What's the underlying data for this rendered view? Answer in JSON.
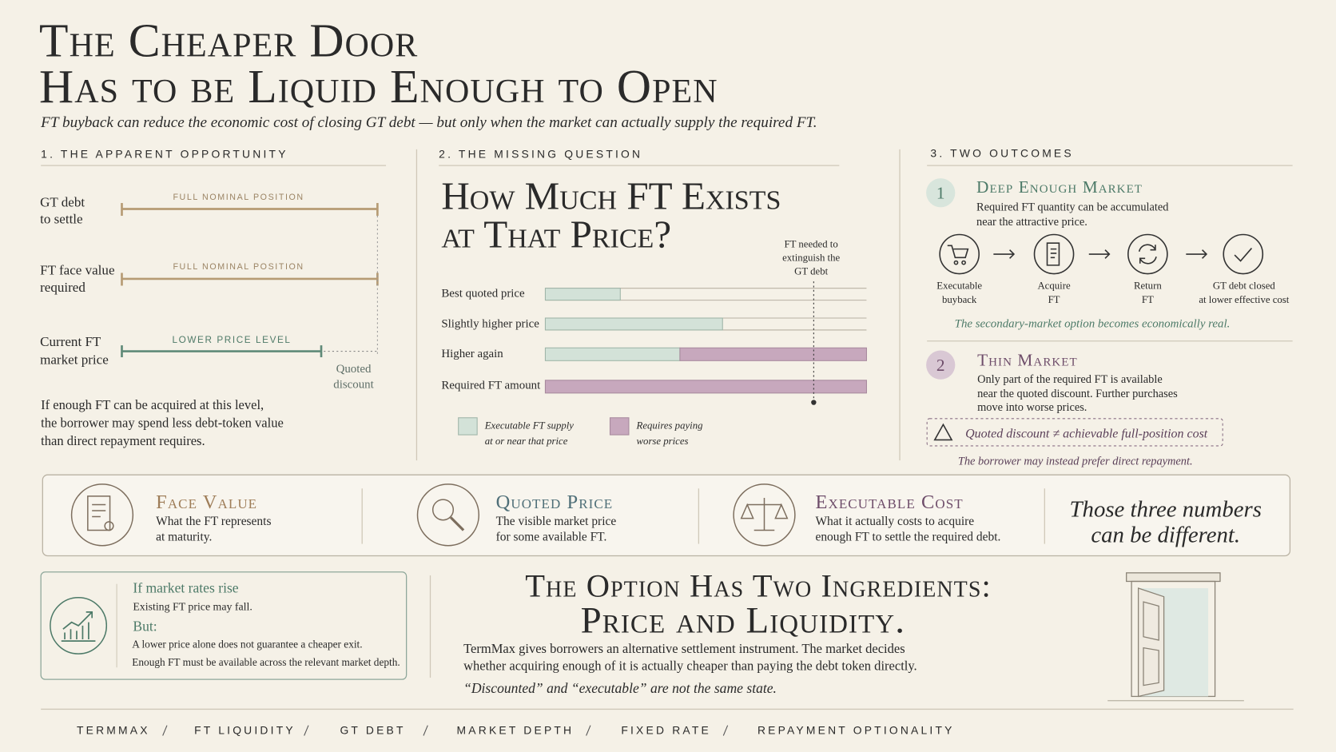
{
  "header": {
    "title": [
      "The Cheaper Door",
      "Has to be Liquid Enough to Open"
    ],
    "subtitle": "FT buyback can reduce the economic cost of closing GT debt — but only when the market can actually supply the required FT."
  },
  "section1": {
    "heading": "1. THE APPARENT OPPORTUNITY",
    "rows": [
      {
        "label": [
          "GT debt",
          "to settle"
        ],
        "bar_label": "FULL NOMINAL POSITION"
      },
      {
        "label": [
          "FT face value",
          "required"
        ],
        "bar_label": "FULL NOMINAL POSITION"
      },
      {
        "label": [
          "Current FT",
          "market price"
        ],
        "bar_label": "LOWER PRICE LEVEL"
      }
    ],
    "gap_label": [
      "Quoted",
      "discount"
    ],
    "text": [
      "If enough FT can be acquired at this level,",
      "the borrower may spend less debt-token value",
      "than direct repayment requires."
    ]
  },
  "section2": {
    "heading": "2. THE MISSING QUESTION",
    "question": [
      "How Much FT Exists",
      "at That Price?"
    ],
    "marker_note": [
      "FT needed to",
      "extinguish the",
      "GT debt"
    ],
    "rows": [
      "Best quoted price",
      "Slightly higher price",
      "Higher again",
      "Required FT amount"
    ],
    "legend": [
      [
        "Executable FT supply",
        "at or near that price"
      ],
      [
        "Requires paying",
        "worse prices"
      ]
    ]
  },
  "section3": {
    "heading": "3. TWO OUTCOMES",
    "outcomes": [
      {
        "number": "1",
        "title": "Deep Enough Market",
        "text": [
          "Required FT quantity can be accumulated",
          "near the attractive price."
        ],
        "steps": [
          [
            "Executable",
            "buyback"
          ],
          [
            "Acquire",
            "FT"
          ],
          [
            "Return",
            "FT"
          ],
          [
            "GT debt closed",
            "at lower effective cost"
          ]
        ],
        "note": "The secondary-market option becomes economically real."
      },
      {
        "number": "2",
        "title": "Thin Market",
        "text": [
          "Only part of the required FT is available",
          "near the quoted discount. Further purchases",
          "move into worse prices."
        ],
        "warning": "Quoted discount ≠ achievable full-position cost",
        "note": "The borrower may instead prefer direct repayment."
      }
    ]
  },
  "band": {
    "items": [
      {
        "title": "Face Value",
        "text": [
          "What the FT represents",
          "at maturity."
        ]
      },
      {
        "title": "Quoted Price",
        "text": [
          "The visible market price",
          "for some available FT."
        ]
      },
      {
        "title": "Executable Cost",
        "text": [
          "What it actually costs to acquire",
          "enough FT to settle the required debt."
        ]
      }
    ],
    "quote": [
      "Those three numbers",
      "can be different."
    ]
  },
  "rates": {
    "title": "If market rates rise",
    "line": "Existing FT price may fall.",
    "but": "But:",
    "lines": [
      "A lower price alone does not guarantee a cheaper exit.",
      "Enough FT must be available across the relevant market depth."
    ]
  },
  "conclusion": {
    "title": [
      "The Option Has Two Ingredients:",
      "Price and Liquidity."
    ],
    "text": [
      "TermMax gives borrowers an alternative settlement instrument. The market decides",
      "whether acquiring enough of it is actually cheaper than paying the debt token directly."
    ],
    "note": "“Discounted” and “executable” are not the same state."
  },
  "footer": {
    "tags": [
      "TERMMAX",
      "FT LIQUIDITY",
      "GT DEBT",
      "MARKET DEPTH",
      "FIXED RATE",
      "REPAYMENT OPTIONALITY"
    ]
  }
}
